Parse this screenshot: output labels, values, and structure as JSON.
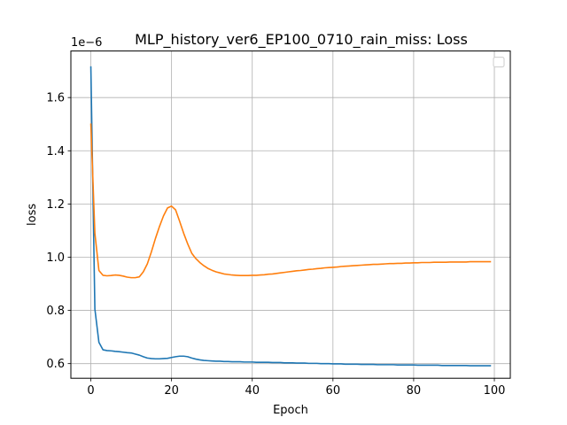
{
  "chart_data": {
    "type": "line",
    "title": "MLP_history_ver6_EP100_0710_rain_miss: Loss",
    "xlabel": "Epoch",
    "ylabel": "loss",
    "y_offset_text": "1e−6",
    "y_scale": 1e-06,
    "xlim": [
      -4.95,
      103.95
    ],
    "ylim": [
      0.545,
      1.775
    ],
    "x_ticks": [
      0,
      20,
      40,
      60,
      80,
      100
    ],
    "y_ticks": [
      0.6,
      0.8,
      1.0,
      1.2,
      1.4,
      1.6
    ],
    "y_tick_labels": [
      "0.6",
      "0.8",
      "1.0",
      "1.2",
      "1.4",
      "1.6"
    ],
    "grid": true,
    "legend": "upper-right",
    "series": [
      {
        "color": "#1f77b4",
        "x": [
          0,
          1,
          2,
          3,
          4,
          5,
          6,
          7,
          8,
          9,
          10,
          11,
          12,
          13,
          14,
          15,
          16,
          17,
          18,
          19,
          20,
          21,
          22,
          23,
          24,
          25,
          26,
          27,
          28,
          29,
          30,
          31,
          32,
          33,
          34,
          35,
          36,
          37,
          38,
          39,
          40,
          41,
          42,
          43,
          44,
          45,
          46,
          47,
          48,
          49,
          50,
          51,
          52,
          53,
          54,
          55,
          56,
          57,
          58,
          59,
          60,
          61,
          62,
          63,
          64,
          65,
          66,
          67,
          68,
          69,
          70,
          71,
          72,
          73,
          74,
          75,
          76,
          77,
          78,
          79,
          80,
          81,
          82,
          83,
          84,
          85,
          86,
          87,
          88,
          89,
          90,
          91,
          92,
          93,
          94,
          95,
          96,
          97,
          98,
          99
        ],
        "values": [
          1.715,
          0.805,
          0.68,
          0.652,
          0.649,
          0.648,
          0.646,
          0.645,
          0.643,
          0.641,
          0.64,
          0.636,
          0.632,
          0.626,
          0.621,
          0.619,
          0.618,
          0.618,
          0.619,
          0.62,
          0.623,
          0.626,
          0.628,
          0.628,
          0.626,
          0.621,
          0.617,
          0.614,
          0.612,
          0.611,
          0.61,
          0.609,
          0.609,
          0.608,
          0.608,
          0.607,
          0.607,
          0.607,
          0.606,
          0.606,
          0.606,
          0.605,
          0.605,
          0.605,
          0.605,
          0.604,
          0.604,
          0.604,
          0.603,
          0.603,
          0.603,
          0.602,
          0.602,
          0.602,
          0.601,
          0.601,
          0.601,
          0.6,
          0.6,
          0.6,
          0.599,
          0.599,
          0.599,
          0.598,
          0.598,
          0.598,
          0.598,
          0.597,
          0.597,
          0.597,
          0.597,
          0.596,
          0.596,
          0.596,
          0.596,
          0.596,
          0.595,
          0.595,
          0.595,
          0.595,
          0.595,
          0.594,
          0.594,
          0.594,
          0.594,
          0.594,
          0.594,
          0.593,
          0.593,
          0.593,
          0.593,
          0.593,
          0.593,
          0.593,
          0.592,
          0.592,
          0.592,
          0.592,
          0.592,
          0.592
        ]
      },
      {
        "color": "#ff7f0e",
        "x": [
          0,
          1,
          2,
          3,
          4,
          5,
          6,
          7,
          8,
          9,
          10,
          11,
          12,
          13,
          14,
          15,
          16,
          17,
          18,
          19,
          20,
          21,
          22,
          23,
          24,
          25,
          26,
          27,
          28,
          29,
          30,
          31,
          32,
          33,
          34,
          35,
          36,
          37,
          38,
          39,
          40,
          41,
          42,
          43,
          44,
          45,
          46,
          47,
          48,
          49,
          50,
          51,
          52,
          53,
          54,
          55,
          56,
          57,
          58,
          59,
          60,
          61,
          62,
          63,
          64,
          65,
          66,
          67,
          68,
          69,
          70,
          71,
          72,
          73,
          74,
          75,
          76,
          77,
          78,
          79,
          80,
          81,
          82,
          83,
          84,
          85,
          86,
          87,
          88,
          89,
          90,
          91,
          92,
          93,
          94,
          95,
          96,
          97,
          98,
          99
        ],
        "values": [
          1.5,
          1.09,
          0.95,
          0.932,
          0.93,
          0.931,
          0.933,
          0.932,
          0.929,
          0.925,
          0.923,
          0.923,
          0.926,
          0.945,
          0.975,
          1.02,
          1.07,
          1.115,
          1.155,
          1.185,
          1.192,
          1.178,
          1.135,
          1.09,
          1.05,
          1.015,
          0.995,
          0.98,
          0.968,
          0.958,
          0.951,
          0.945,
          0.941,
          0.937,
          0.935,
          0.933,
          0.932,
          0.931,
          0.931,
          0.931,
          0.932,
          0.932,
          0.933,
          0.934,
          0.936,
          0.937,
          0.939,
          0.941,
          0.943,
          0.945,
          0.947,
          0.949,
          0.95,
          0.952,
          0.954,
          0.955,
          0.957,
          0.958,
          0.96,
          0.961,
          0.962,
          0.963,
          0.965,
          0.966,
          0.967,
          0.968,
          0.969,
          0.97,
          0.971,
          0.972,
          0.973,
          0.973,
          0.974,
          0.975,
          0.976,
          0.976,
          0.977,
          0.977,
          0.978,
          0.978,
          0.979,
          0.979,
          0.98,
          0.98,
          0.98,
          0.981,
          0.981,
          0.981,
          0.981,
          0.982,
          0.982,
          0.982,
          0.982,
          0.982,
          0.983,
          0.983,
          0.983,
          0.983,
          0.983,
          0.983
        ]
      }
    ]
  }
}
